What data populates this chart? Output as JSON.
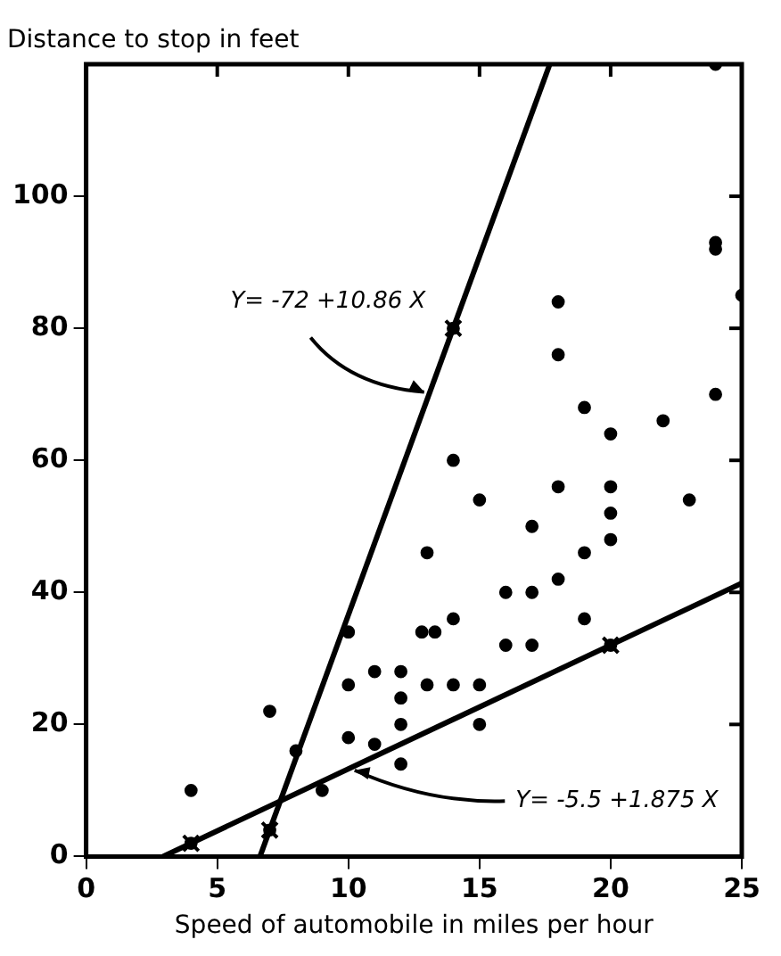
{
  "chart_data": {
    "type": "scatter",
    "xlabel": "Speed of automobile in miles per hour",
    "ylabel": "Distance to stop in feet",
    "xlim": [
      0,
      25
    ],
    "xticks": [
      0,
      5,
      10,
      15,
      20,
      25
    ],
    "ylim": [
      0,
      120
    ],
    "yticks": [
      0,
      20,
      40,
      60,
      80,
      100
    ],
    "grid": false,
    "legend": false,
    "marker": "circle",
    "series": [
      {
        "color": "#000000",
        "x": [
          4,
          4,
          7,
          7,
          8,
          9,
          10,
          10,
          10,
          11,
          11,
          12,
          12,
          12,
          12,
          13,
          12.8,
          13.3,
          13,
          14,
          14,
          14,
          14,
          15,
          15,
          15,
          16,
          16,
          17,
          17,
          17,
          18,
          18,
          18,
          18,
          19,
          19,
          19,
          20,
          20,
          20,
          20,
          20,
          22,
          23,
          24,
          24,
          24,
          24,
          25
        ],
        "values": [
          2,
          10,
          4,
          22,
          16,
          10,
          18,
          26,
          34,
          17,
          28,
          14,
          20,
          24,
          28,
          26,
          34,
          34,
          46,
          26,
          36,
          60,
          80,
          20,
          26,
          54,
          32,
          40,
          32,
          40,
          50,
          42,
          56,
          76,
          84,
          36,
          46,
          68,
          32,
          48,
          52,
          56,
          64,
          66,
          54,
          70,
          92,
          93,
          120,
          85
        ]
      },
      {
        "type": "line",
        "color": "#000000",
        "marker": "none",
        "line_style": "solid",
        "x": [
          6.63,
          17.68
        ],
        "values": [
          0,
          120
        ]
      },
      {
        "type": "line",
        "color": "#000000",
        "marker": "none",
        "line_style": "solid",
        "x": [
          2.93,
          25
        ],
        "values": [
          0,
          41.4
        ]
      },
      {
        "type": "scatter",
        "color": "#000000",
        "marker": "cross",
        "x": [
          7,
          14,
          4,
          20
        ],
        "values": [
          4,
          80,
          2,
          32
        ]
      }
    ],
    "annotations": [
      {
        "text": "Y= -72 +10.86 X",
        "x": 13.07,
        "y": 70
      },
      {
        "text": "Y= -5.5 +1.875 X",
        "x": 10,
        "y": 13.25
      }
    ]
  }
}
